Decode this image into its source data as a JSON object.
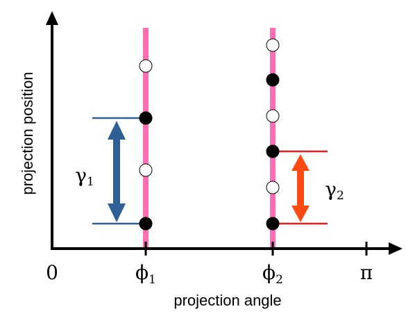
{
  "x_axis_label": "projection angle",
  "y_axis_label": "projection position",
  "x_ticks": [
    {
      "symbol": "0",
      "subscript": ""
    },
    {
      "symbol": "ϕ",
      "subscript": "1"
    },
    {
      "symbol": "ϕ",
      "subscript": "2"
    },
    {
      "symbol": "π",
      "subscript": ""
    }
  ],
  "gap_labels": [
    {
      "symbol": "γ",
      "subscript": "1"
    },
    {
      "symbol": "γ",
      "subscript": "2"
    }
  ]
}
